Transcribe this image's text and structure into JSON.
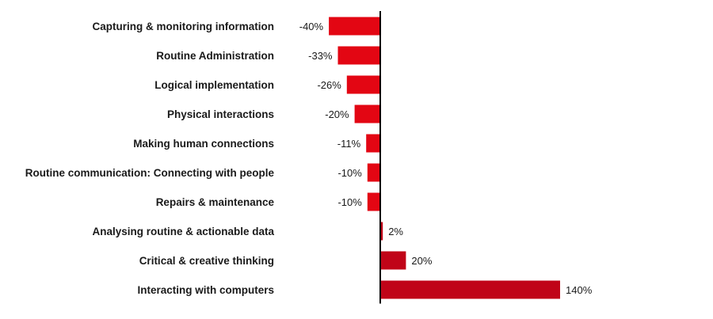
{
  "chart_data": {
    "type": "bar",
    "orientation": "horizontal",
    "categories": [
      "Capturing & monitoring information",
      "Routine Administration",
      "Logical implementation",
      "Physical interactions",
      "Making human connections",
      "Routine communication: Connecting with people",
      "Repairs & maintenance",
      "Analysing routine & actionable data",
      "Critical & creative thinking",
      "Interacting with computers"
    ],
    "values": [
      -40,
      -33,
      -26,
      -20,
      -11,
      -10,
      -10,
      2,
      20,
      140
    ],
    "value_labels": [
      "-40%",
      "-33%",
      "-26%",
      "-20%",
      "-11%",
      "-10%",
      "-10%",
      "2%",
      "20%",
      "140%"
    ],
    "title": "",
    "xlabel": "",
    "ylabel": "",
    "grid": false,
    "legend": "none",
    "colors": {
      "negative": "#e30613",
      "positive": "#c00418",
      "axis": "#000000",
      "text": "#1a1a1a"
    }
  }
}
